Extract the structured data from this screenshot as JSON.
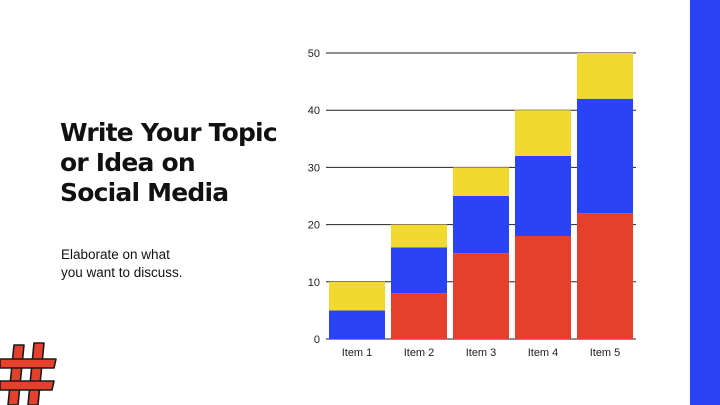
{
  "slide": {
    "title_lines": [
      "Write Your Topic",
      "or Idea on",
      "Social Media"
    ],
    "body_lines": [
      "Elaborate on what",
      "you want to discuss."
    ],
    "decor_icon": "hashtag-icon"
  },
  "colors": {
    "accent_blue": "#2a43f5",
    "red": "#e5402b",
    "blue": "#2a43f5",
    "yellow": "#f2d930",
    "hashtag_red": "#e5402b",
    "text": "#111111"
  },
  "chart_data": {
    "type": "bar",
    "stacked": true,
    "categories": [
      "Item 1",
      "Item 2",
      "Item 3",
      "Item 4",
      "Item 5"
    ],
    "series": [
      {
        "values": [
          0,
          8,
          15,
          18,
          22
        ],
        "color": "#e5402b"
      },
      {
        "values": [
          5,
          8,
          10,
          14,
          20
        ],
        "color": "#2a43f5"
      },
      {
        "values": [
          5,
          4,
          5,
          8,
          8
        ],
        "color": "#f2d930"
      }
    ],
    "yticks": [
      0,
      10,
      20,
      30,
      40,
      50
    ],
    "ylim": [
      0,
      50
    ],
    "grid": true,
    "legend": "none"
  }
}
